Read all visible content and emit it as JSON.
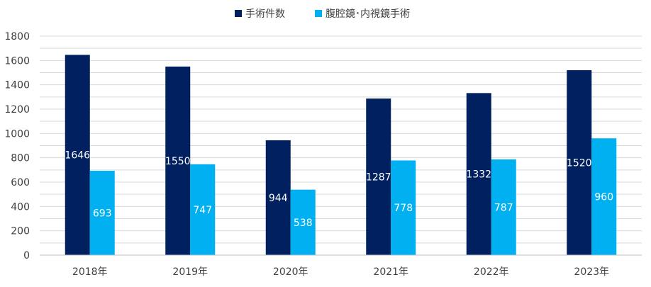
{
  "chart_data": {
    "type": "bar",
    "categories": [
      "2018年",
      "2019年",
      "2020年",
      "2021年",
      "2022年",
      "2023年"
    ],
    "series": [
      {
        "name": "手術件数",
        "values": [
          1646,
          1550,
          944,
          1287,
          1332,
          1520
        ],
        "color": "#002060"
      },
      {
        "name": "腹腔鏡･内視鏡手術",
        "values": [
          693,
          747,
          538,
          778,
          787,
          960
        ],
        "color": "#00b0f0"
      }
    ],
    "ylim": [
      0,
      1800
    ],
    "yticks": [
      0,
      200,
      400,
      600,
      800,
      1000,
      1200,
      1400,
      1600,
      1800
    ],
    "grid": true,
    "legend_position": "top-center",
    "title": "",
    "xlabel": "",
    "ylabel": ""
  }
}
